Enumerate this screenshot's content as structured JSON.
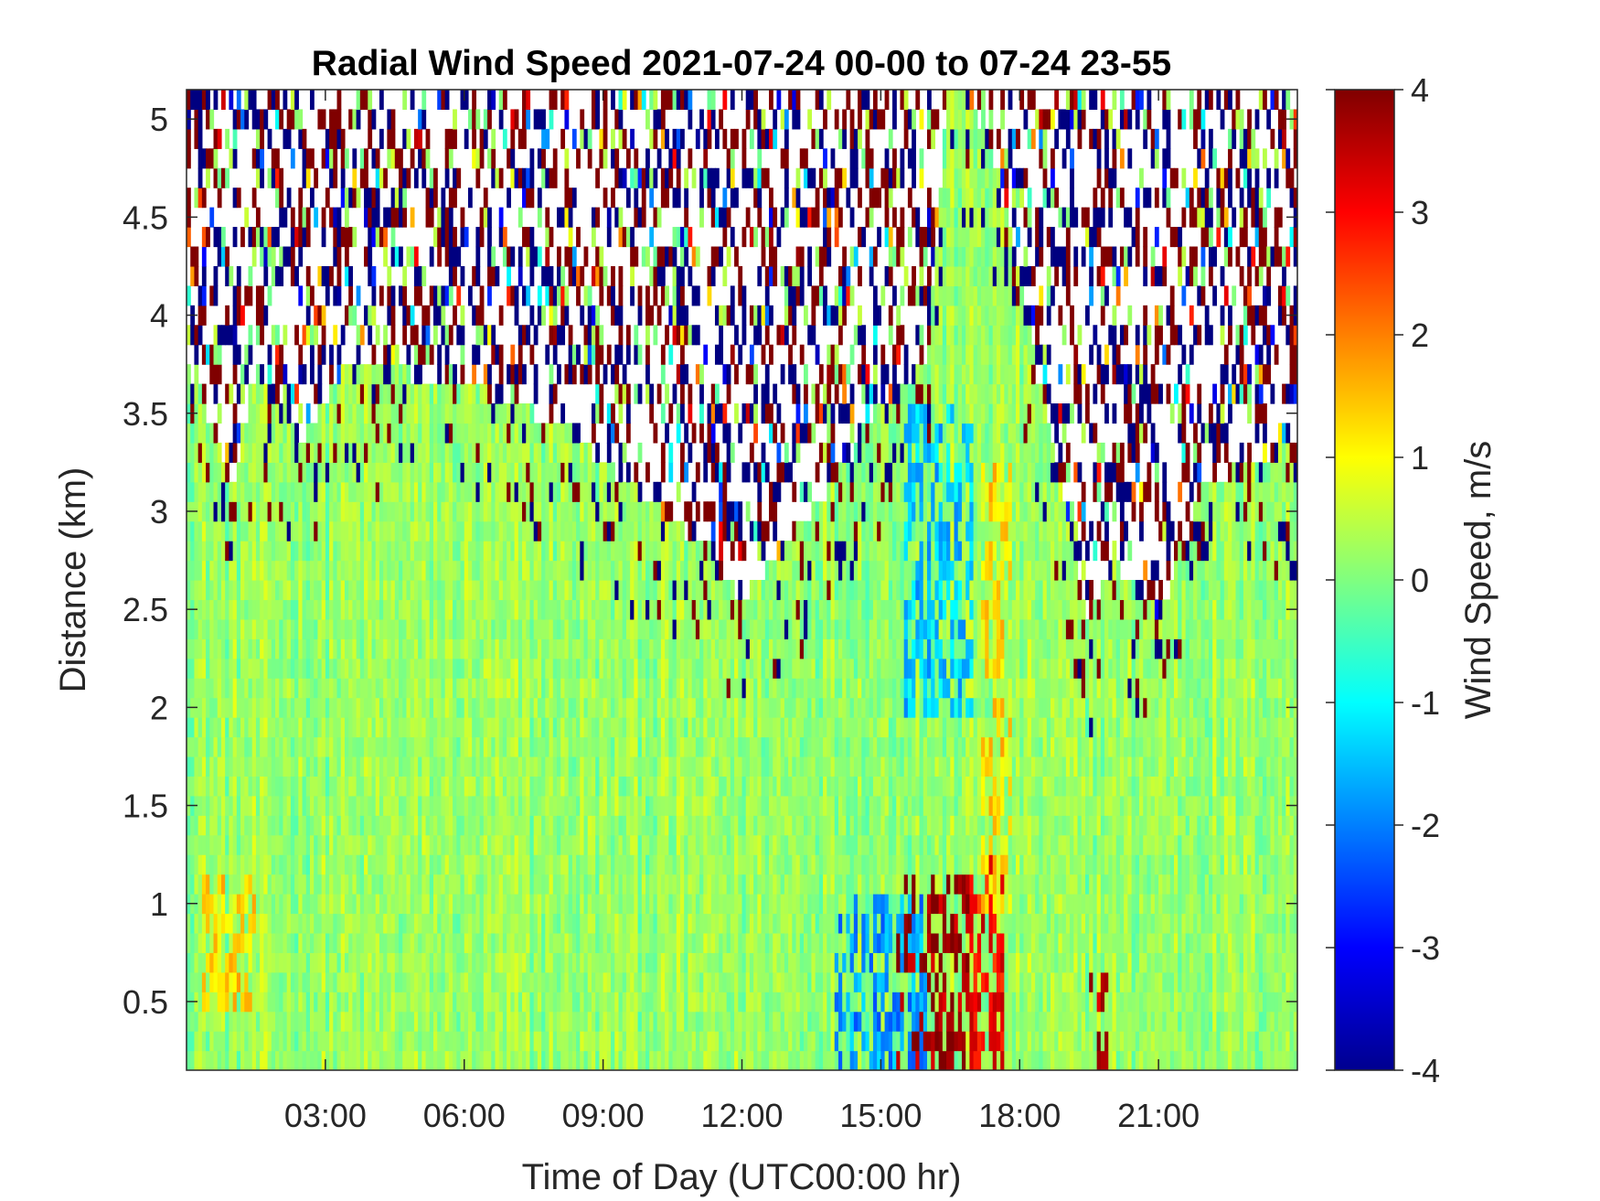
{
  "chart_data": {
    "type": "heatmap",
    "title": "Radial Wind Speed 2021-07-24 00-00 to 07-24 23-55",
    "xlabel": "Time of Day (UTC00:00 hr)",
    "ylabel": "Distance (km)",
    "colorbar_label": "Wind Speed, m/s",
    "colormap": "jet",
    "x_unit": "hours",
    "x": {
      "range": [
        0,
        24
      ],
      "ticks": [
        3,
        6,
        9,
        12,
        15,
        18,
        21
      ],
      "tick_labels": [
        "03:00",
        "06:00",
        "09:00",
        "12:00",
        "15:00",
        "18:00",
        "21:00"
      ]
    },
    "y": {
      "range": [
        0.15,
        5.15
      ],
      "ticks": [
        0.5,
        1,
        1.5,
        2,
        2.5,
        3,
        3.5,
        4,
        4.5,
        5
      ],
      "tick_labels": [
        "0.5",
        "1",
        "1.5",
        "2",
        "2.5",
        "3",
        "3.5",
        "4",
        "4.5",
        "5"
      ]
    },
    "colorbar": {
      "range": [
        -4,
        4
      ],
      "ticks": [
        4,
        3,
        2,
        1,
        0,
        -1,
        -2,
        -3,
        -4
      ],
      "tick_labels": [
        "4",
        "3",
        "2",
        "1",
        "0",
        "-1",
        "-2",
        "-3",
        "-4"
      ]
    },
    "grid": false,
    "description_of_field": {
      "background_value": 0.2,
      "valid_data_top_km_by_hour": [
        [
          0,
          3.6
        ],
        [
          1,
          3.0
        ],
        [
          1.5,
          3.6
        ],
        [
          2.5,
          3.2
        ],
        [
          3.5,
          3.6
        ],
        [
          6,
          3.5
        ],
        [
          8,
          3.3
        ],
        [
          9.5,
          3.0
        ],
        [
          11,
          2.7
        ],
        [
          12,
          2.4
        ],
        [
          13,
          2.7
        ],
        [
          14,
          3.0
        ],
        [
          15,
          3.4
        ],
        [
          16,
          3.6
        ],
        [
          16.5,
          5.15
        ],
        [
          17.5,
          4.6
        ],
        [
          18.5,
          3.4
        ],
        [
          19.5,
          2.3
        ],
        [
          20,
          2.6
        ],
        [
          21,
          2.3
        ],
        [
          22,
          3.0
        ],
        [
          24,
          3.2
        ]
      ],
      "features": [
        {
          "kind": "positive_burst",
          "x_hours": [
            15.3,
            16.9
          ],
          "y_km": [
            0.15,
            1.1
          ],
          "value": 3.8
        },
        {
          "kind": "positive_burst",
          "x_hours": [
            16.9,
            17.7
          ],
          "y_km": [
            0.15,
            1.2
          ],
          "value": 3.0
        },
        {
          "kind": "positive_burst",
          "x_hours": [
            19.5,
            19.9
          ],
          "y_km": [
            0.15,
            0.7
          ],
          "value": 3.5
        },
        {
          "kind": "negative_region",
          "x_hours": [
            15.5,
            17.0
          ],
          "y_km": [
            2.0,
            3.5
          ],
          "value": -1.4
        },
        {
          "kind": "negative_streaks",
          "x_hours": [
            14.0,
            16.0
          ],
          "y_km": [
            0.15,
            1.0
          ],
          "value": -1.8
        },
        {
          "kind": "positive_column",
          "x_hours": [
            17.2,
            17.8
          ],
          "y_km": [
            1.0,
            3.3
          ],
          "value": 1.2
        },
        {
          "kind": "warm_patch",
          "x_hours": [
            0.3,
            1.5
          ],
          "y_km": [
            0.5,
            1.1
          ],
          "value": 1.2
        }
      ]
    }
  }
}
